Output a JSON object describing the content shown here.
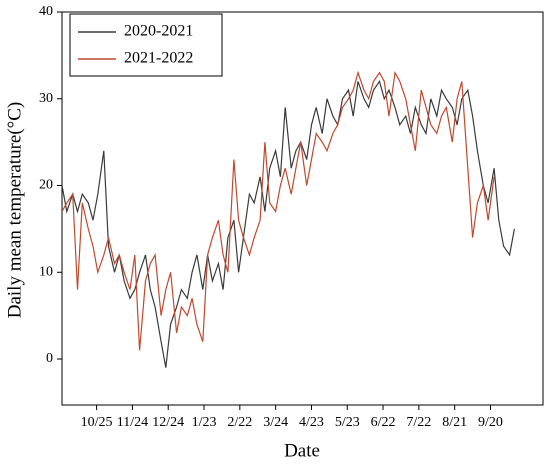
{
  "chart_data": {
    "type": "line",
    "xlabel": "Date",
    "ylabel": "Daily mean temperature(°C)",
    "x": [
      0,
      4,
      9,
      13,
      17,
      22,
      26,
      30,
      35,
      39,
      44,
      48,
      52,
      57,
      61,
      65,
      70,
      74,
      78,
      83,
      87,
      91,
      96,
      100,
      105,
      109,
      113,
      118,
      122,
      126,
      131,
      135,
      139,
      144,
      148,
      152,
      157,
      161,
      166,
      170,
      174,
      179,
      183,
      187,
      192,
      196,
      200,
      205,
      209,
      213,
      218,
      222,
      227,
      231,
      235,
      240,
      244,
      248,
      253,
      257,
      261,
      266,
      270,
      274,
      279,
      283,
      288,
      292,
      296,
      301,
      305,
      309,
      314,
      318,
      322,
      327,
      331,
      335,
      340,
      344,
      348,
      353,
      357,
      362,
      366,
      370,
      375,
      379
    ],
    "series": [
      {
        "name": "2020-2021",
        "color": "#3a3a3a",
        "values": [
          20,
          17,
          19,
          17,
          19,
          18,
          16,
          19,
          24,
          13,
          10,
          12,
          9,
          7,
          8,
          10,
          12,
          8,
          6,
          2,
          -1,
          4,
          6,
          8,
          7,
          10,
          12,
          8,
          12,
          9,
          11,
          8,
          14,
          16,
          10,
          14,
          19,
          18,
          21,
          17,
          22,
          24,
          21,
          29,
          22,
          24,
          25,
          23,
          27,
          29,
          26,
          30,
          28,
          27,
          30,
          31,
          28,
          32,
          30,
          29,
          31,
          32,
          30,
          31,
          29,
          27,
          28,
          26,
          29,
          27,
          26,
          30,
          28,
          31,
          30,
          29,
          27,
          30,
          31,
          28,
          24,
          20,
          18,
          22,
          16,
          13,
          12,
          15
        ]
      },
      {
        "name": "2021-2022",
        "color": "#c0492e",
        "values": [
          17,
          18,
          19,
          8,
          18,
          15,
          13,
          10,
          12,
          14,
          11,
          12,
          10,
          8,
          12,
          1,
          9,
          11,
          12,
          5,
          8,
          10,
          3,
          6,
          5,
          7,
          4,
          2,
          12,
          14,
          16,
          12,
          10,
          23,
          16,
          14,
          12,
          14,
          16,
          25,
          18,
          17,
          20,
          22,
          19,
          22,
          25,
          20,
          23,
          26,
          25,
          24,
          26,
          27,
          29,
          30,
          31,
          33,
          31,
          30,
          32,
          33,
          32,
          28,
          33,
          32,
          30,
          27,
          24,
          31,
          29,
          27,
          26,
          28,
          29,
          25,
          30,
          32,
          22,
          14,
          18,
          20,
          16,
          21,
          null,
          null,
          null,
          null
        ]
      }
    ],
    "xlim": [
      0,
      403
    ],
    "xticks": [
      {
        "value": 29,
        "label": "10/25"
      },
      {
        "value": 59,
        "label": "11/24"
      },
      {
        "value": 89,
        "label": "12/24"
      },
      {
        "value": 119,
        "label": "1/23"
      },
      {
        "value": 149,
        "label": "2/22"
      },
      {
        "value": 179,
        "label": "3/24"
      },
      {
        "value": 209,
        "label": "4/23"
      },
      {
        "value": 239,
        "label": "5/23"
      },
      {
        "value": 269,
        "label": "6/22"
      },
      {
        "value": 299,
        "label": "7/22"
      },
      {
        "value": 329,
        "label": "8/21"
      },
      {
        "value": 359,
        "label": "9/20"
      }
    ],
    "ylim": [
      -5.3,
      40
    ],
    "yticks": [
      0,
      10,
      20,
      30,
      40
    ],
    "legend": "upper left"
  }
}
